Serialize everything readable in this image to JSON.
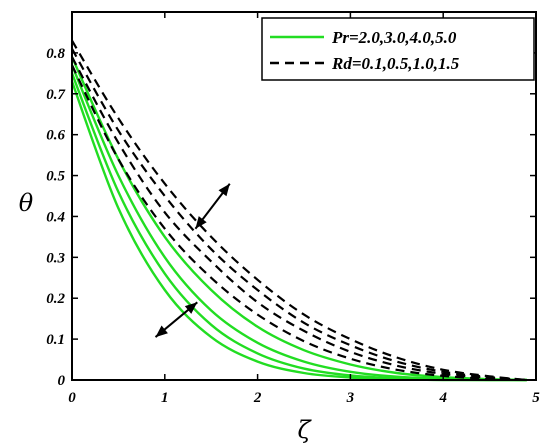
{
  "chart_data": {
    "type": "line",
    "xlabel": "ζ",
    "ylabel": "θ",
    "xlim": [
      0,
      5
    ],
    "ylim": [
      0,
      0.9
    ],
    "xticks": [
      "0",
      "1",
      "2",
      "3",
      "4",
      "5"
    ],
    "yticks": [
      "0",
      "0.1",
      "0.2",
      "0.3",
      "0.4",
      "0.5",
      "0.6",
      "0.7",
      "0.8"
    ],
    "grid": false,
    "legend_position": "top-right",
    "legend": [
      {
        "label": "Pr=2.0,3.0,4.0,5.0",
        "style": "solid",
        "color": "#22dd22"
      },
      {
        "label": "Rd=0.1,0.5,1.0,1.5",
        "style": "dashed",
        "color": "#000000"
      }
    ],
    "x": [
      0,
      0.5,
      1,
      1.5,
      2,
      2.5,
      3,
      3.5,
      4,
      4.5,
      4.9
    ],
    "series": [
      {
        "group": "Pr",
        "style": "solid",
        "color": "#22dd22",
        "values": [
          0.79,
          0.54,
          0.35,
          0.22,
          0.13,
          0.073,
          0.038,
          0.017,
          0.007,
          0.002,
          0.0
        ]
      },
      {
        "group": "Pr",
        "style": "solid",
        "color": "#22dd22",
        "values": [
          0.77,
          0.5,
          0.3,
          0.17,
          0.091,
          0.045,
          0.02,
          0.008,
          0.003,
          0.001,
          0.0
        ]
      },
      {
        "group": "Pr",
        "style": "solid",
        "color": "#22dd22",
        "values": [
          0.75,
          0.46,
          0.26,
          0.135,
          0.065,
          0.028,
          0.011,
          0.004,
          0.001,
          0.0,
          0.0
        ]
      },
      {
        "group": "Pr",
        "style": "solid",
        "color": "#22dd22",
        "values": [
          0.73,
          0.42,
          0.22,
          0.105,
          0.045,
          0.017,
          0.006,
          0.002,
          0.0,
          0.0,
          0.0
        ]
      },
      {
        "group": "Rd",
        "style": "dashed",
        "color": "#000000",
        "values": [
          0.77,
          0.54,
          0.37,
          0.25,
          0.16,
          0.095,
          0.052,
          0.025,
          0.01,
          0.003,
          0.0
        ]
      },
      {
        "group": "Rd",
        "style": "dashed",
        "color": "#000000",
        "values": [
          0.79,
          0.58,
          0.41,
          0.29,
          0.19,
          0.12,
          0.069,
          0.035,
          0.015,
          0.005,
          0.0
        ]
      },
      {
        "group": "Rd",
        "style": "dashed",
        "color": "#000000",
        "values": [
          0.81,
          0.61,
          0.45,
          0.32,
          0.22,
          0.14,
          0.085,
          0.045,
          0.02,
          0.007,
          0.0
        ]
      },
      {
        "group": "Rd",
        "style": "dashed",
        "color": "#000000",
        "values": [
          0.83,
          0.64,
          0.48,
          0.35,
          0.245,
          0.16,
          0.1,
          0.055,
          0.025,
          0.009,
          0.0
        ]
      }
    ],
    "annotations": [
      {
        "type": "double-arrow",
        "from": [
          1.33,
          0.37
        ],
        "to": [
          1.7,
          0.48
        ]
      },
      {
        "type": "double-arrow",
        "from": [
          1.35,
          0.19
        ],
        "to": [
          0.9,
          0.105
        ]
      }
    ]
  }
}
